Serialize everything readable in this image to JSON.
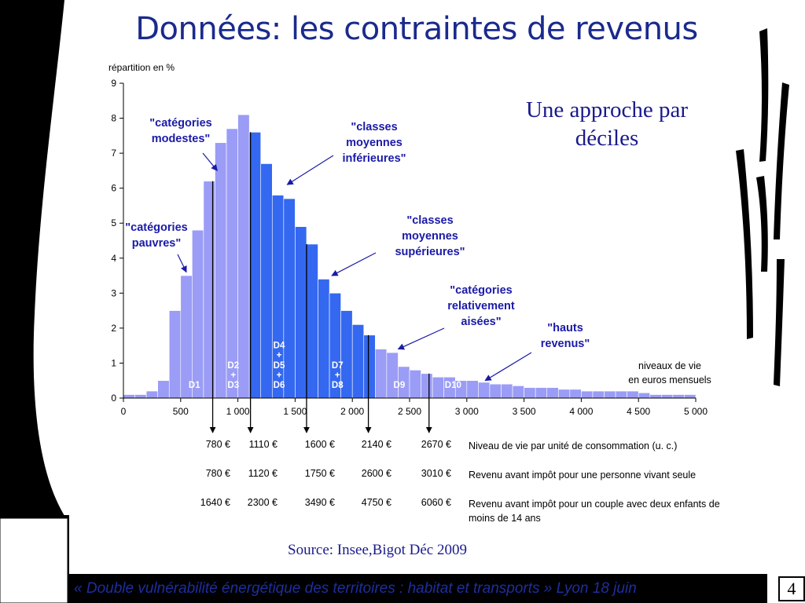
{
  "title": "Données: les contraintes de revenus",
  "subtitle": "Une approche par déciles",
  "source": "Source: Insee,Bigot Déc 2009",
  "footer": "« Double vulnérabilité énergétique des territoires : habitat et transports »  Lyon 18 juin",
  "page_number": "4",
  "chart_data": {
    "type": "bar",
    "ylabel": "répartition en %",
    "xlabel": "niveaux de vie en euros mensuels",
    "xlabel_lines": [
      "niveaux de vie",
      "en euros mensuels"
    ],
    "ylim": [
      0,
      9
    ],
    "xlim": [
      0,
      5000
    ],
    "y_ticks": [
      "0",
      "1",
      "2",
      "3",
      "4",
      "5",
      "6",
      "7",
      "8",
      "9"
    ],
    "x_ticks": [
      {
        "value": 0,
        "label": "0"
      },
      {
        "value": 500,
        "label": "500"
      },
      {
        "value": 1000,
        "label": "1 000"
      },
      {
        "value": 1500,
        "label": "1 500"
      },
      {
        "value": 2000,
        "label": "2 000"
      },
      {
        "value": 2500,
        "label": "2 500"
      },
      {
        "value": 3000,
        "label": "3 000"
      },
      {
        "value": 3500,
        "label": "3 500"
      },
      {
        "value": 4000,
        "label": "4 000"
      },
      {
        "value": 4500,
        "label": "4 500"
      },
      {
        "value": 5000,
        "label": "5 000"
      }
    ],
    "bin_width": 100,
    "bins": [
      {
        "x": 50,
        "value": 0.1,
        "group": "light"
      },
      {
        "x": 150,
        "value": 0.1,
        "group": "light"
      },
      {
        "x": 250,
        "value": 0.2,
        "group": "light"
      },
      {
        "x": 350,
        "value": 0.5,
        "group": "light"
      },
      {
        "x": 450,
        "value": 2.5,
        "group": "light"
      },
      {
        "x": 550,
        "value": 3.5,
        "group": "light"
      },
      {
        "x": 650,
        "value": 4.8,
        "group": "light"
      },
      {
        "x": 750,
        "value": 6.2,
        "group": "light"
      },
      {
        "x": 850,
        "value": 7.3,
        "group": "light"
      },
      {
        "x": 950,
        "value": 7.7,
        "group": "light"
      },
      {
        "x": 1050,
        "value": 8.1,
        "group": "light"
      },
      {
        "x": 1150,
        "value": 7.6,
        "group": "dark"
      },
      {
        "x": 1250,
        "value": 6.7,
        "group": "dark"
      },
      {
        "x": 1350,
        "value": 5.8,
        "group": "dark"
      },
      {
        "x": 1450,
        "value": 5.7,
        "group": "dark"
      },
      {
        "x": 1550,
        "value": 4.9,
        "group": "dark"
      },
      {
        "x": 1650,
        "value": 4.4,
        "group": "dark"
      },
      {
        "x": 1750,
        "value": 3.4,
        "group": "dark"
      },
      {
        "x": 1850,
        "value": 3.0,
        "group": "dark"
      },
      {
        "x": 1950,
        "value": 2.5,
        "group": "dark"
      },
      {
        "x": 2050,
        "value": 2.1,
        "group": "dark"
      },
      {
        "x": 2150,
        "value": 1.8,
        "group": "dark"
      },
      {
        "x": 2250,
        "value": 1.4,
        "group": "light"
      },
      {
        "x": 2350,
        "value": 1.3,
        "group": "light"
      },
      {
        "x": 2450,
        "value": 0.9,
        "group": "light"
      },
      {
        "x": 2550,
        "value": 0.8,
        "group": "light"
      },
      {
        "x": 2650,
        "value": 0.7,
        "group": "light"
      },
      {
        "x": 2750,
        "value": 0.6,
        "group": "light"
      },
      {
        "x": 2850,
        "value": 0.6,
        "group": "light"
      },
      {
        "x": 2950,
        "value": 0.5,
        "group": "light"
      },
      {
        "x": 3050,
        "value": 0.5,
        "group": "light"
      },
      {
        "x": 3150,
        "value": 0.45,
        "group": "light"
      },
      {
        "x": 3250,
        "value": 0.4,
        "group": "light"
      },
      {
        "x": 3350,
        "value": 0.4,
        "group": "light"
      },
      {
        "x": 3450,
        "value": 0.35,
        "group": "light"
      },
      {
        "x": 3550,
        "value": 0.3,
        "group": "light"
      },
      {
        "x": 3650,
        "value": 0.3,
        "group": "light"
      },
      {
        "x": 3750,
        "value": 0.3,
        "group": "light"
      },
      {
        "x": 3850,
        "value": 0.25,
        "group": "light"
      },
      {
        "x": 3950,
        "value": 0.25,
        "group": "light"
      },
      {
        "x": 4050,
        "value": 0.2,
        "group": "light"
      },
      {
        "x": 4150,
        "value": 0.2,
        "group": "light"
      },
      {
        "x": 4250,
        "value": 0.2,
        "group": "light"
      },
      {
        "x": 4350,
        "value": 0.2,
        "group": "light"
      },
      {
        "x": 4450,
        "value": 0.2,
        "group": "light"
      },
      {
        "x": 4550,
        "value": 0.15,
        "group": "light"
      },
      {
        "x": 4650,
        "value": 0.1,
        "group": "light"
      },
      {
        "x": 4750,
        "value": 0.1,
        "group": "light"
      },
      {
        "x": 4850,
        "value": 0.1,
        "group": "light"
      },
      {
        "x": 4950,
        "value": 0.1,
        "group": "light"
      }
    ],
    "decile_boundaries": [
      780,
      1110,
      1600,
      2140,
      2670
    ],
    "decile_labels": [
      {
        "x": 620,
        "lines": [
          "D1"
        ]
      },
      {
        "x": 960,
        "lines": [
          "D2",
          "+",
          "D3"
        ]
      },
      {
        "x": 1360,
        "lines": [
          "D4",
          "+",
          "D5",
          "+",
          "D6"
        ]
      },
      {
        "x": 1870,
        "lines": [
          "D7",
          "+",
          "D8"
        ]
      },
      {
        "x": 2410,
        "lines": [
          "D9"
        ]
      },
      {
        "x": 2880,
        "lines": [
          "D10"
        ]
      }
    ],
    "annotations": [
      {
        "lines": [
          "\"catégories",
          "modestes\""
        ],
        "arrow_to": {
          "x": 820,
          "y": 6.5
        }
      },
      {
        "lines": [
          "\"catégories",
          "pauvres\""
        ],
        "arrow_to": {
          "x": 550,
          "y": 3.6
        }
      },
      {
        "lines": [
          "\"classes",
          "moyennes",
          "inférieures\""
        ],
        "arrow_to": {
          "x": 1430,
          "y": 6.1
        }
      },
      {
        "lines": [
          "\"classes",
          "moyennes",
          "supérieures\""
        ],
        "arrow_to": {
          "x": 1820,
          "y": 3.5
        }
      },
      {
        "lines": [
          "\"catégories",
          "relativement",
          "aisées\""
        ],
        "arrow_to": {
          "x": 2400,
          "y": 1.4
        }
      },
      {
        "lines": [
          "\"hauts",
          "revenus\""
        ],
        "arrow_to": {
          "x": 3160,
          "y": 0.5
        }
      }
    ],
    "colors": {
      "light": "#9a9cf6",
      "dark": "#3468f0",
      "text_in_bars": "#ffffff",
      "annotation": "#1a1aa8"
    }
  },
  "revenue_table": [
    {
      "values": [
        "780 €",
        "1110 €",
        "1600 €",
        "2140 €",
        "2670 €"
      ],
      "description": "Niveau de vie par unité de consommation (u. c.)"
    },
    {
      "values": [
        "780 €",
        "1120 €",
        "1750 €",
        "2600 €",
        "3010 €"
      ],
      "description": "Revenu avant impôt pour une personne vivant seule"
    },
    {
      "values": [
        "1640 €",
        "2300 €",
        "3490 €",
        "4750 €",
        "6060 €"
      ],
      "description": "Revenu avant impôt pour un couple avec deux enfants de moins de 14 ans"
    }
  ]
}
